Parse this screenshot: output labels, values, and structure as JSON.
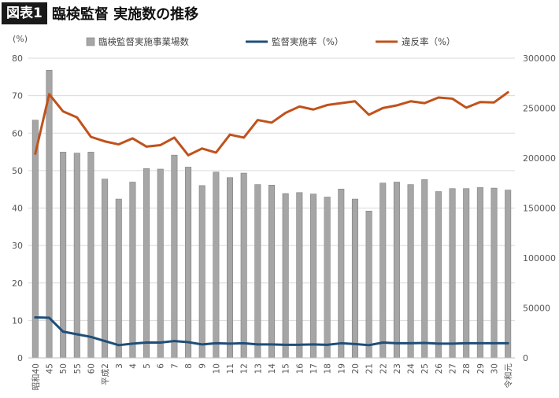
{
  "header": {
    "tag": "図表1",
    "title": "臨検監督 実施数の推移"
  },
  "chart_data": {
    "type": "bar+line",
    "y_left_unit": "(%)",
    "ylim_left": [
      0,
      80
    ],
    "yticks_left": [
      "0",
      "10",
      "20",
      "30",
      "40",
      "50",
      "60",
      "70",
      "80"
    ],
    "ylim_right": [
      0,
      300000
    ],
    "yticks_right": [
      "0",
      "50000",
      "100000",
      "150000",
      "200000",
      "250000",
      "300000"
    ],
    "categories": [
      "昭和40",
      "45",
      "50",
      "55",
      "60",
      "平成2",
      "3",
      "4",
      "5",
      "6",
      "7",
      "8",
      "9",
      "10",
      "11",
      "12",
      "13",
      "14",
      "15",
      "16",
      "17",
      "18",
      "19",
      "20",
      "21",
      "22",
      "23",
      "24",
      "25",
      "26",
      "27",
      "28",
      "29",
      "30",
      "令和元"
    ],
    "series": [
      {
        "name": "臨検監督実施事業場数",
        "type": "bar",
        "axis": "right",
        "color": "#a6a6a6",
        "values": [
          238000,
          288000,
          206000,
          205000,
          206000,
          179000,
          159000,
          176000,
          189500,
          189000,
          203000,
          191000,
          172500,
          186000,
          180500,
          185000,
          173500,
          173000,
          164500,
          165500,
          164000,
          161000,
          169000,
          159000,
          147000,
          175000,
          176000,
          173500,
          178500,
          166500,
          169500,
          169500,
          170500,
          170000,
          168000
        ]
      },
      {
        "name": "監督実施率（%）",
        "type": "line",
        "axis": "left",
        "color": "#1f4e79",
        "values": [
          10.8,
          10.7,
          7.0,
          6.3,
          5.6,
          4.5,
          3.4,
          3.8,
          4.1,
          4.1,
          4.5,
          4.2,
          3.6,
          3.9,
          3.8,
          3.9,
          3.6,
          3.6,
          3.5,
          3.5,
          3.6,
          3.5,
          3.9,
          3.7,
          3.4,
          4.1,
          3.9,
          3.9,
          4.0,
          3.8,
          3.8,
          3.9,
          3.9,
          3.9,
          3.9
        ]
      },
      {
        "name": "違反率（%）",
        "type": "line",
        "axis": "left",
        "color": "#c0521b",
        "values": [
          54.5,
          70.4,
          65.8,
          64.2,
          59.0,
          57.8,
          57.0,
          58.6,
          56.4,
          56.8,
          58.8,
          54.1,
          55.9,
          54.8,
          59.6,
          58.8,
          63.5,
          62.8,
          65.4,
          67.1,
          66.3,
          67.5,
          68.0,
          68.5,
          64.9,
          66.7,
          67.4,
          68.5,
          68.0,
          69.5,
          69.2,
          66.8,
          68.3,
          68.2,
          70.9
        ]
      }
    ],
    "legend_position": "top",
    "grid": true
  }
}
